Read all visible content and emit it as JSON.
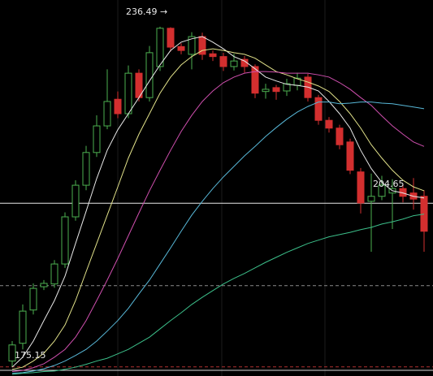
{
  "chart_data": {
    "type": "candlestick",
    "ylim": [
      173.5,
      241.3
    ],
    "up_color": "#4caf50",
    "down_color": "#d32f2f",
    "open": [
      176.2,
      179.4,
      185.4,
      189.6,
      190.1,
      193.7,
      202.2,
      207.9,
      213.8,
      218.6,
      223.4,
      220.8,
      228.1,
      223.7,
      229.3,
      236.2,
      232.9,
      231.5,
      234.7,
      231.6,
      231.1,
      229.3,
      230.6,
      229.3,
      224.8,
      225.5,
      224.9,
      225.9,
      227.4,
      223.7,
      219.6,
      218.2,
      215.7,
      210.3,
      205.0,
      205.9,
      206.5,
      207.3,
      206.5,
      205.9
    ],
    "high": [
      179.8,
      186.4,
      190.2,
      190.8,
      194.4,
      203.0,
      208.8,
      215.0,
      220.5,
      228.8,
      224.8,
      229.5,
      228.8,
      233.0,
      236.49,
      236.4,
      233.5,
      235.5,
      235.4,
      232.2,
      231.8,
      231.6,
      231.2,
      229.7,
      226.2,
      226.0,
      227.1,
      228.2,
      228.0,
      224.2,
      220.2,
      218.8,
      216.3,
      211.0,
      210.0,
      209.6,
      209.0,
      208.2,
      209.2,
      207.0
    ],
    "low": [
      175.15,
      178.3,
      184.6,
      189.0,
      189.4,
      193.0,
      201.5,
      207.0,
      213.0,
      218.0,
      220.0,
      220.0,
      223.0,
      223.0,
      228.5,
      232.0,
      231.5,
      228.8,
      230.5,
      230.3,
      228.5,
      228.6,
      228.2,
      223.6,
      223.5,
      223.3,
      224.0,
      225.0,
      223.0,
      218.8,
      217.4,
      214.4,
      209.9,
      202.8,
      195.9,
      205.2,
      200.0,
      204.8,
      203.5,
      195.9
    ],
    "close": [
      179.1,
      185.2,
      189.3,
      190.2,
      193.7,
      202.2,
      207.9,
      213.8,
      218.6,
      223.0,
      220.8,
      228.1,
      223.7,
      231.8,
      236.2,
      232.8,
      232.2,
      234.7,
      231.5,
      231.1,
      229.3,
      230.3,
      229.3,
      224.5,
      225.2,
      224.8,
      226.2,
      227.2,
      223.7,
      219.6,
      218.2,
      215.2,
      210.6,
      204.7,
      205.9,
      207.9,
      207.3,
      205.9,
      205.4,
      199.6
    ],
    "lines": [
      {
        "color": "#e8e8e8",
        "values": [
          175.1,
          176.9,
          179.8,
          183.5,
          187.1,
          191.5,
          197.4,
          203.2,
          209.1,
          214.2,
          217.9,
          220.8,
          223.7,
          226.7,
          229.6,
          232.2,
          233.7,
          234.3,
          234.7,
          233.7,
          232.5,
          231.1,
          230.3,
          228.9,
          227.4,
          226.7,
          226.1,
          225.9,
          225.6,
          224.9,
          223.0,
          220.8,
          218.2,
          214.2,
          210.9,
          208.4,
          206.9,
          206.5,
          205.9,
          205.6
        ]
      },
      {
        "color": "#e2e28a",
        "values": [
          174.7,
          175.1,
          176.2,
          177.6,
          179.8,
          182.7,
          187.1,
          192.3,
          197.4,
          202.5,
          207.6,
          212.8,
          217.1,
          220.8,
          224.5,
          227.4,
          229.6,
          231.1,
          232.2,
          232.5,
          232.2,
          231.8,
          231.5,
          230.8,
          229.6,
          228.4,
          227.8,
          227.1,
          226.5,
          225.8,
          224.8,
          223.0,
          220.8,
          218.2,
          215.2,
          212.8,
          210.6,
          208.8,
          207.6,
          206.9
        ]
      },
      {
        "color": "#cf4fae",
        "values": [
          174.3,
          174.5,
          175.0,
          175.7,
          176.9,
          178.3,
          180.5,
          183.5,
          187.1,
          190.8,
          194.7,
          198.8,
          202.9,
          206.9,
          210.6,
          214.2,
          217.6,
          220.5,
          223.0,
          224.9,
          226.4,
          227.4,
          228.1,
          228.4,
          228.4,
          228.3,
          228.1,
          228.1,
          228.1,
          227.8,
          227.4,
          226.4,
          225.2,
          223.7,
          222.3,
          220.4,
          218.6,
          217.1,
          215.7,
          214.9
        ]
      },
      {
        "color": "#58b8d8",
        "values": [
          174.0,
          174.1,
          174.4,
          174.8,
          175.4,
          176.2,
          177.2,
          178.3,
          179.8,
          181.6,
          183.5,
          185.7,
          188.3,
          190.8,
          193.7,
          196.6,
          199.6,
          202.5,
          205.0,
          207.3,
          209.4,
          211.3,
          213.2,
          214.9,
          216.7,
          218.3,
          219.8,
          221.1,
          222.1,
          222.9,
          222.9,
          222.6,
          222.7,
          222.9,
          222.9,
          222.7,
          222.6,
          222.3,
          222.0,
          221.7
        ]
      },
      {
        "color": "#3cbf8a",
        "values": [
          173.8,
          174.0,
          174.1,
          174.3,
          174.4,
          174.7,
          175.1,
          175.6,
          176.2,
          176.7,
          177.5,
          178.3,
          179.4,
          180.5,
          182.0,
          183.5,
          184.9,
          186.4,
          187.7,
          188.9,
          190.1,
          191.1,
          192.0,
          193.0,
          194.0,
          194.9,
          195.8,
          196.6,
          197.4,
          198.0,
          198.6,
          199.0,
          199.4,
          199.9,
          200.3,
          200.9,
          201.3,
          201.8,
          202.4,
          202.7
        ]
      }
    ],
    "price_lines": [
      {
        "value": 204.65,
        "color": "#e8e8e8",
        "dashed": false
      },
      {
        "value": 189.8,
        "color": "#8a8a8a",
        "dashed": true
      },
      {
        "value": 175.15,
        "color": "#b03030",
        "dashed": true
      }
    ],
    "annotations": [
      {
        "text": "236.49 →"
      },
      {
        "text": "204.65"
      },
      {
        "text": "175.15"
      }
    ]
  }
}
